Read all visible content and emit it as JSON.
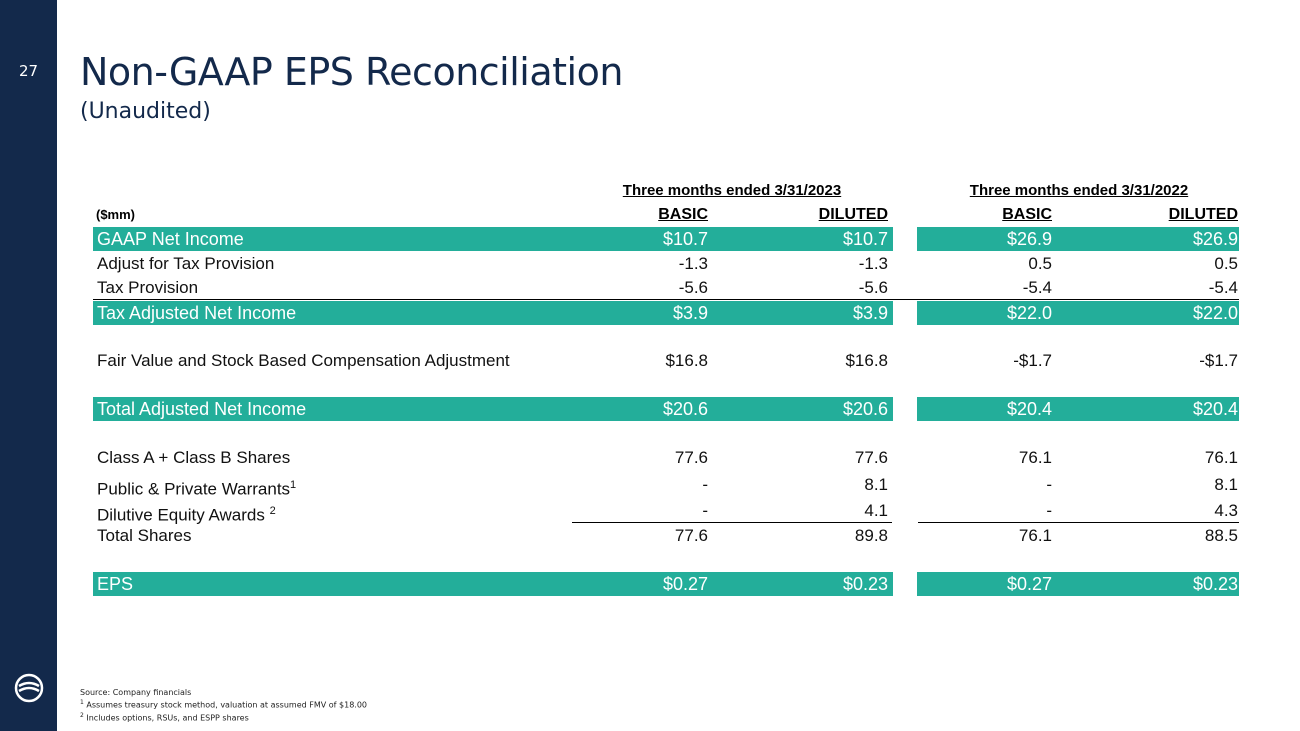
{
  "slide": {
    "page_number": "27",
    "title": "Non-GAAP EPS Reconciliation",
    "subtitle": "(Unaudited)"
  },
  "table": {
    "unit_label": "($mm)",
    "periods": [
      "Three months ended 3/31/2023",
      "Three months ended 3/31/2022"
    ],
    "column_headers": [
      "BASIC",
      "DILUTED",
      "BASIC",
      "DILUTED"
    ],
    "rows": [
      {
        "label": "GAAP Net Income",
        "values": [
          "$10.7",
          "$10.7",
          "$26.9",
          "$26.9"
        ]
      },
      {
        "label": "Adjust for Tax Provision",
        "values": [
          "-1.3",
          "-1.3",
          "0.5",
          "0.5"
        ]
      },
      {
        "label": "Tax Provision",
        "values": [
          "-5.6",
          "-5.6",
          "-5.4",
          "-5.4"
        ]
      },
      {
        "label": "Tax Adjusted Net Income",
        "values": [
          "$3.9",
          "$3.9",
          "$22.0",
          "$22.0"
        ]
      },
      {
        "label": "Fair Value and Stock Based Compensation Adjustment",
        "values": [
          "$16.8",
          "$16.8",
          "-$1.7",
          "-$1.7"
        ]
      },
      {
        "label": "Total Adjusted Net Income",
        "values": [
          "$20.6",
          "$20.6",
          "$20.4",
          "$20.4"
        ]
      },
      {
        "label": "Class A + Class B Shares",
        "values": [
          "77.6",
          "77.6",
          "76.1",
          "76.1"
        ]
      },
      {
        "label": "Public & Private Warrants",
        "sup": "1",
        "values": [
          "-",
          "8.1",
          "-",
          "8.1"
        ]
      },
      {
        "label": "Dilutive Equity Awards ",
        "sup": "2",
        "values": [
          "-",
          "4.1",
          "-",
          "4.3"
        ]
      },
      {
        "label": "Total Shares",
        "values": [
          "77.6",
          "89.8",
          "76.1",
          "88.5"
        ]
      },
      {
        "label": "EPS",
        "values": [
          "$0.27",
          "$0.23",
          "$0.27",
          "$0.23"
        ]
      }
    ]
  },
  "footnotes": [
    "Source: Company financials",
    "Assumes treasury stock method, valuation at assumed FMV of $18.00",
    "Includes options, RSUs, and ESPP shares"
  ],
  "footnote_markers": [
    "1",
    "2"
  ],
  "colors": {
    "navy": "#13294b",
    "teal": "#23ae9a"
  }
}
